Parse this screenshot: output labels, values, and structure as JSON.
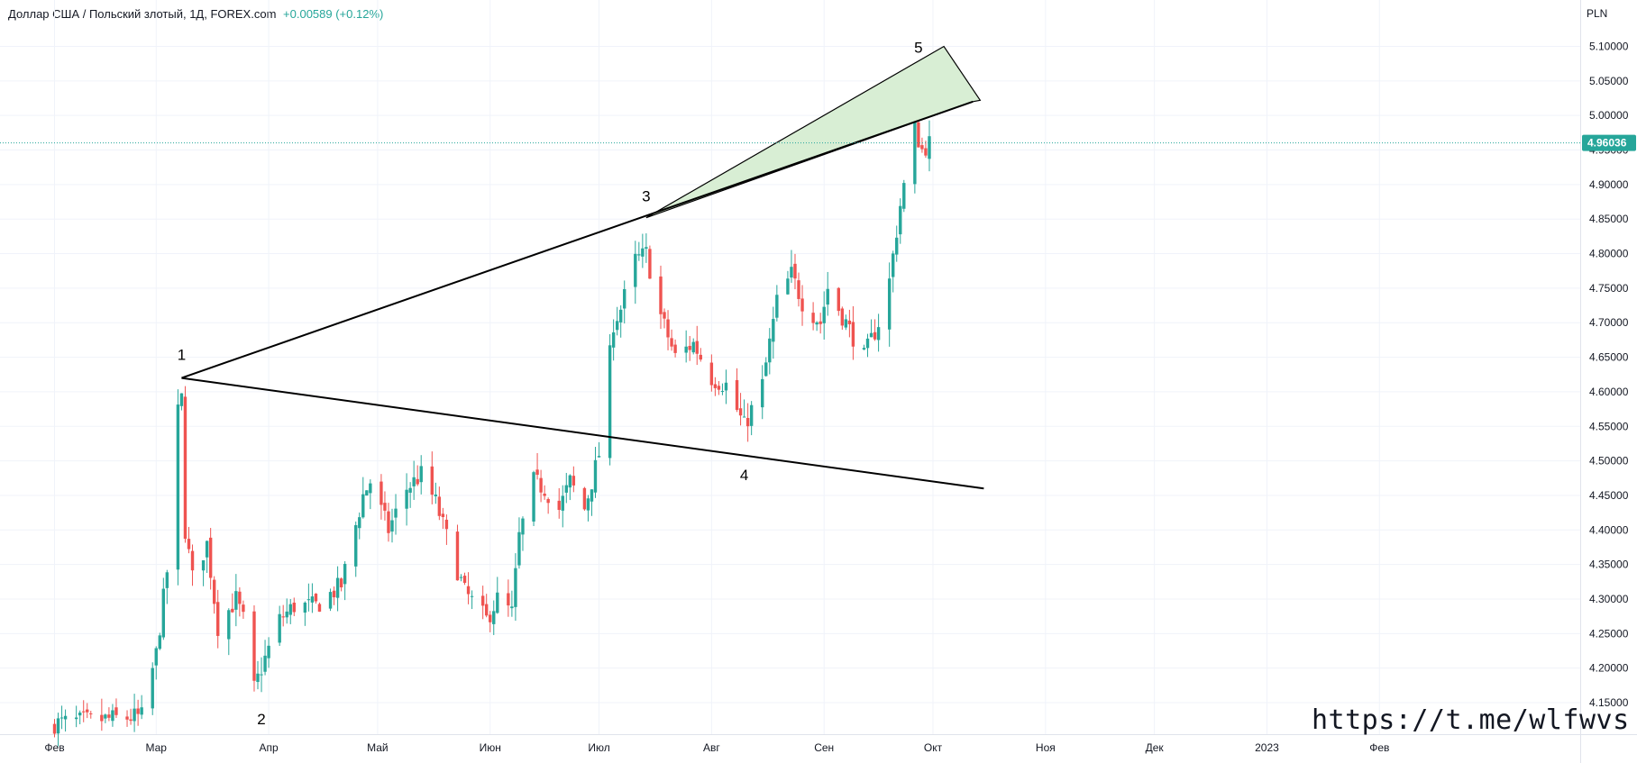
{
  "header": {
    "title": "Доллар США / Польский злотый, 1Д, FOREX.com",
    "change": "+0.00589 (+0.12%)"
  },
  "price_axis_unit": "PLN",
  "watermark": "https://t.me/wlfwvs",
  "colors": {
    "up": "#26a69a",
    "down": "#ef5350",
    "grid": "#f0f3fa",
    "last": "#26a69a",
    "fill": "#d8eed4"
  },
  "chart_data": {
    "type": "candlestick",
    "symbol": "USD/PLN",
    "interval": "1D",
    "ylim": [
      4.115,
      5.125
    ],
    "y_ticks": [
      "4.15000",
      "4.20000",
      "4.25000",
      "4.30000",
      "4.35000",
      "4.40000",
      "4.45000",
      "4.50000",
      "4.55000",
      "4.60000",
      "4.65000",
      "4.70000",
      "4.75000",
      "4.80000",
      "4.85000",
      "4.90000",
      "4.95000",
      "5.00000",
      "5.05000",
      "5.10000"
    ],
    "x_ticks": [
      "Фев",
      "Мар",
      "Апр",
      "Май",
      "Июн",
      "Июл",
      "Авг",
      "Сен",
      "Окт",
      "Ноя",
      "Дек",
      "2023",
      "Фев"
    ],
    "last_price": "4.96036",
    "ohlc_close_path": [
      [
        "2022-02-01",
        4.12
      ],
      [
        "2022-02-25",
        4.13
      ],
      [
        "2022-03-01",
        4.22
      ],
      [
        "2022-03-04",
        4.34
      ],
      [
        "2022-03-07",
        4.57
      ],
      [
        "2022-03-08",
        4.59
      ],
      [
        "2022-03-09",
        4.4
      ],
      [
        "2022-03-11",
        4.33
      ],
      [
        "2022-03-15",
        4.38
      ],
      [
        "2022-03-18",
        4.26
      ],
      [
        "2022-03-23",
        4.3
      ],
      [
        "2022-03-25",
        4.27
      ],
      [
        "2022-03-28",
        4.17
      ],
      [
        "2022-03-30",
        4.2
      ],
      [
        "2022-04-04",
        4.27
      ],
      [
        "2022-04-08",
        4.29
      ],
      [
        "2022-04-14",
        4.29
      ],
      [
        "2022-04-21",
        4.32
      ],
      [
        "2022-04-27",
        4.45
      ],
      [
        "2022-04-29",
        4.47
      ],
      [
        "2022-05-04",
        4.4
      ],
      [
        "2022-05-09",
        4.46
      ],
      [
        "2022-05-13",
        4.48
      ],
      [
        "2022-05-17",
        4.44
      ],
      [
        "2022-05-20",
        4.39
      ],
      [
        "2022-05-25",
        4.31
      ],
      [
        "2022-05-31",
        4.27
      ],
      [
        "2022-06-03",
        4.3
      ],
      [
        "2022-06-07",
        4.28
      ],
      [
        "2022-06-09",
        4.39
      ],
      [
        "2022-06-13",
        4.47
      ],
      [
        "2022-06-16",
        4.46
      ],
      [
        "2022-06-20",
        4.43
      ],
      [
        "2022-06-23",
        4.47
      ],
      [
        "2022-06-27",
        4.43
      ],
      [
        "2022-07-01",
        4.51
      ],
      [
        "2022-07-05",
        4.7
      ],
      [
        "2022-07-07",
        4.72
      ],
      [
        "2022-07-11",
        4.79
      ],
      [
        "2022-07-14",
        4.8
      ],
      [
        "2022-07-18",
        4.71
      ],
      [
        "2022-07-22",
        4.65
      ],
      [
        "2022-07-27",
        4.67
      ],
      [
        "2022-08-01",
        4.62
      ],
      [
        "2022-08-05",
        4.61
      ],
      [
        "2022-08-10",
        4.55
      ],
      [
        "2022-08-15",
        4.61
      ],
      [
        "2022-08-19",
        4.73
      ],
      [
        "2022-08-23",
        4.77
      ],
      [
        "2022-08-26",
        4.73
      ],
      [
        "2022-08-31",
        4.7
      ],
      [
        "2022-09-02",
        4.75
      ],
      [
        "2022-09-07",
        4.7
      ],
      [
        "2022-09-12",
        4.65
      ],
      [
        "2022-09-16",
        4.7
      ],
      [
        "2022-09-19",
        4.76
      ],
      [
        "2022-09-22",
        4.87
      ],
      [
        "2022-09-26",
        4.98
      ],
      [
        "2022-09-28",
        4.95
      ],
      [
        "2022-09-30",
        4.96
      ]
    ],
    "annotations": [
      {
        "label": "1",
        "date": "2022-03-08",
        "price": 4.62
      },
      {
        "label": "2",
        "date": "2022-03-30",
        "price": 4.15
      },
      {
        "label": "3",
        "date": "2022-07-14",
        "price": 4.852
      },
      {
        "label": "4",
        "date": "2022-08-10",
        "price": 4.505
      },
      {
        "label": "5",
        "date": "2022-09-27",
        "price": 5.065
      }
    ],
    "trendlines": [
      {
        "name": "upper",
        "from": [
          "2022-03-08",
          4.62
        ],
        "to": [
          "2022-10-12",
          5.02
        ]
      },
      {
        "name": "lower",
        "from": [
          "2022-03-08",
          4.62
        ],
        "to": [
          "2022-10-15",
          4.46
        ]
      }
    ]
  }
}
